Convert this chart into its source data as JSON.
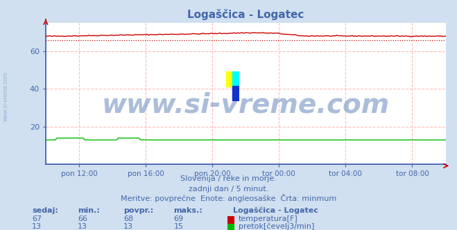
{
  "title": "Logaščica - Logatec",
  "bg_color": "#d0e0f0",
  "plot_bg_color": "#ffffff",
  "grid_color": "#ffbbbb",
  "grid_linestyle": "--",
  "x_labels": [
    "pon 12:00",
    "pon 16:00",
    "pon 20:00",
    "tor 00:00",
    "tor 04:00",
    "tor 08:00"
  ],
  "x_ticks_frac": [
    0.0833,
    0.25,
    0.4167,
    0.5833,
    0.75,
    0.9167
  ],
  "y_min": 0,
  "y_max": 75,
  "y_ticks": [
    20,
    40,
    60
  ],
  "temp_color": "#cc0000",
  "flow_color": "#00bb00",
  "min_line_color": "#cc0000",
  "temp_min": 66,
  "temp_max": 69,
  "temp_avg": 68,
  "temp_curr": 67,
  "flow_min": 13,
  "flow_max": 15,
  "flow_avg": 13,
  "flow_curr": 13,
  "watermark_text": "www.si-vreme.com",
  "watermark_color": "#6688bb",
  "watermark_alpha": 0.55,
  "watermark_fontsize": 28,
  "subtitle1": "Slovenija / reke in morje.",
  "subtitle2": "zadnji dan / 5 minut.",
  "subtitle3": "Meritve: povprečne  Enote: angleosaške  Črta: minmum",
  "text_color": "#4466aa",
  "side_watermark": "www.si-vreme.com",
  "table_headers": [
    "sedaj:",
    "min.:",
    "povpr.:",
    "maks.:"
  ],
  "legend_title": "Logaščica - Logatec",
  "row1_vals": [
    "67",
    "66",
    "68",
    "69"
  ],
  "row2_vals": [
    "13",
    "13",
    "13",
    "15"
  ],
  "row1_label": "temperatura[F]",
  "row2_label": "pretok[čevelj3/min]",
  "spine_color": "#3355aa",
  "arrow_color": "#cc0000"
}
